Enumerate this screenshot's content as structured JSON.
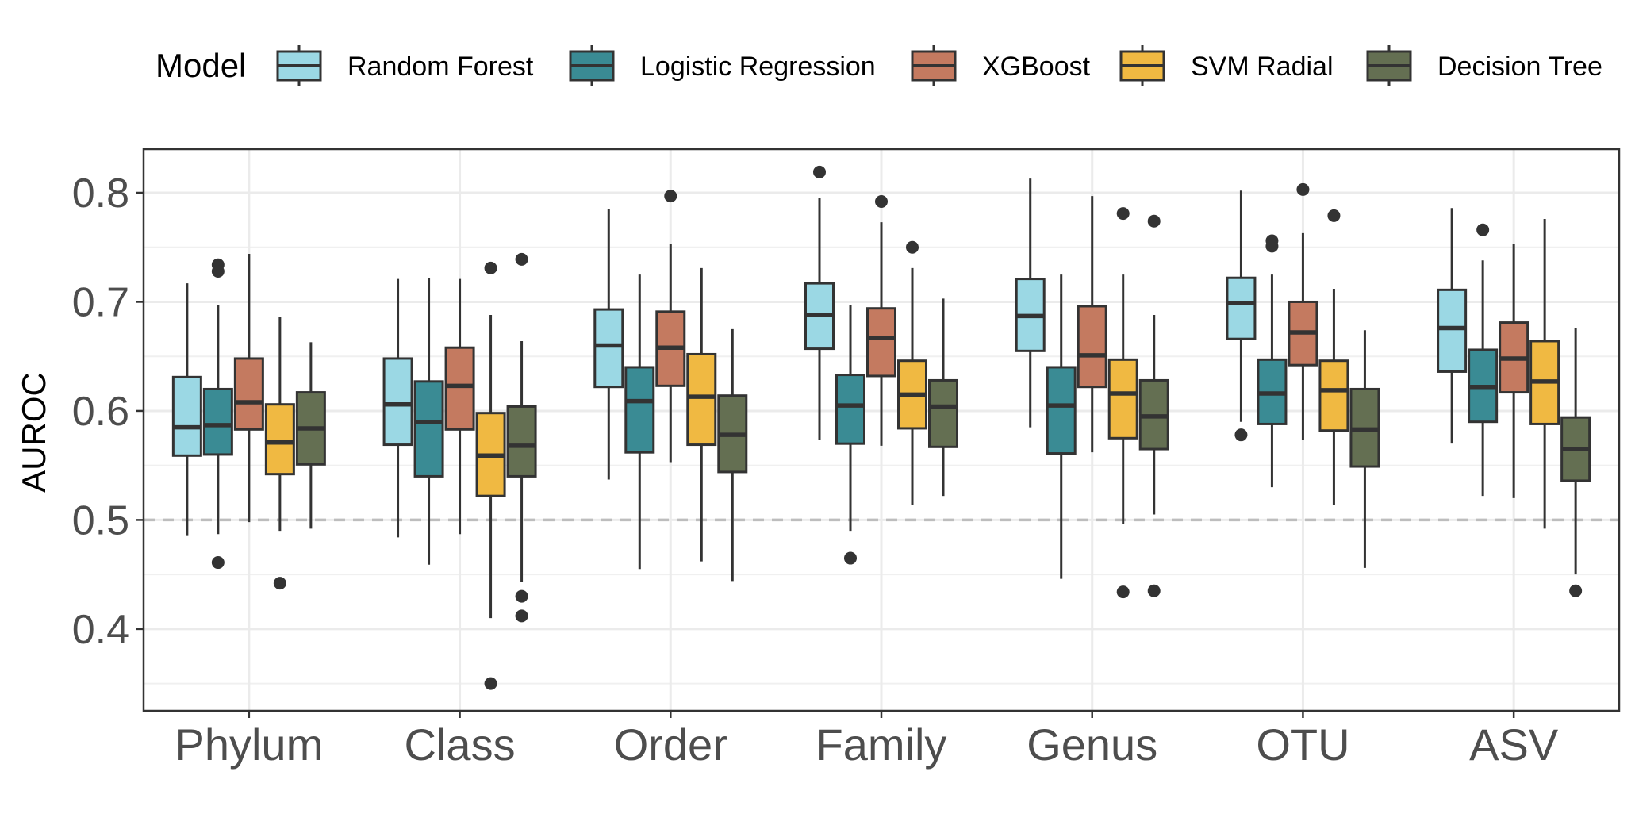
{
  "chart_data": {
    "type": "boxplot",
    "title": "",
    "xlabel": "",
    "ylabel": "AUROC",
    "ylim": [
      0.325,
      0.84
    ],
    "yticks": [
      0.4,
      0.5,
      0.6,
      0.7,
      0.8
    ],
    "ytick_labels": [
      "0.4",
      "0.5",
      "0.6",
      "0.7",
      "0.8"
    ],
    "reference_line": {
      "y": 0.5,
      "style": "dashed",
      "color": "#bdbdbd"
    },
    "grid": true,
    "legend": {
      "title": "Model",
      "position": "top"
    },
    "categories": [
      "Phylum",
      "Class",
      "Order",
      "Family",
      "Genus",
      "OTU",
      "ASV"
    ],
    "series": [
      {
        "name": "Random Forest",
        "color": "#9bd8e4",
        "boxes": [
          {
            "whislo": 0.486,
            "q1": 0.559,
            "med": 0.585,
            "q3": 0.631,
            "whishi": 0.717,
            "fliers": []
          },
          {
            "whislo": 0.484,
            "q1": 0.569,
            "med": 0.606,
            "q3": 0.648,
            "whishi": 0.721,
            "fliers": []
          },
          {
            "whislo": 0.537,
            "q1": 0.622,
            "med": 0.66,
            "q3": 0.693,
            "whishi": 0.785,
            "fliers": []
          },
          {
            "whislo": 0.573,
            "q1": 0.657,
            "med": 0.688,
            "q3": 0.717,
            "whishi": 0.795,
            "fliers": [
              0.819
            ]
          },
          {
            "whislo": 0.585,
            "q1": 0.655,
            "med": 0.687,
            "q3": 0.721,
            "whishi": 0.813,
            "fliers": []
          },
          {
            "whislo": 0.59,
            "q1": 0.666,
            "med": 0.699,
            "q3": 0.722,
            "whishi": 0.802,
            "fliers": [
              0.578
            ]
          },
          {
            "whislo": 0.57,
            "q1": 0.636,
            "med": 0.676,
            "q3": 0.711,
            "whishi": 0.786,
            "fliers": []
          }
        ]
      },
      {
        "name": "Logistic Regression",
        "color": "#3a8b94",
        "boxes": [
          {
            "whislo": 0.487,
            "q1": 0.56,
            "med": 0.587,
            "q3": 0.62,
            "whishi": 0.697,
            "fliers": [
              0.734,
              0.728,
              0.461
            ]
          },
          {
            "whislo": 0.459,
            "q1": 0.54,
            "med": 0.59,
            "q3": 0.627,
            "whishi": 0.722,
            "fliers": []
          },
          {
            "whislo": 0.455,
            "q1": 0.562,
            "med": 0.609,
            "q3": 0.64,
            "whishi": 0.725,
            "fliers": []
          },
          {
            "whislo": 0.49,
            "q1": 0.57,
            "med": 0.605,
            "q3": 0.633,
            "whishi": 0.697,
            "fliers": [
              0.465
            ]
          },
          {
            "whislo": 0.446,
            "q1": 0.561,
            "med": 0.605,
            "q3": 0.64,
            "whishi": 0.725,
            "fliers": []
          },
          {
            "whislo": 0.53,
            "q1": 0.588,
            "med": 0.616,
            "q3": 0.647,
            "whishi": 0.725,
            "fliers": [
              0.756,
              0.751
            ]
          },
          {
            "whislo": 0.522,
            "q1": 0.59,
            "med": 0.622,
            "q3": 0.656,
            "whishi": 0.738,
            "fliers": [
              0.766
            ]
          }
        ]
      },
      {
        "name": "XGBoost",
        "color": "#c47a60",
        "boxes": [
          {
            "whislo": 0.498,
            "q1": 0.583,
            "med": 0.608,
            "q3": 0.648,
            "whishi": 0.744,
            "fliers": []
          },
          {
            "whislo": 0.487,
            "q1": 0.583,
            "med": 0.623,
            "q3": 0.658,
            "whishi": 0.721,
            "fliers": []
          },
          {
            "whislo": 0.553,
            "q1": 0.623,
            "med": 0.658,
            "q3": 0.691,
            "whishi": 0.753,
            "fliers": [
              0.797
            ]
          },
          {
            "whislo": 0.568,
            "q1": 0.632,
            "med": 0.667,
            "q3": 0.694,
            "whishi": 0.773,
            "fliers": [
              0.792
            ]
          },
          {
            "whislo": 0.562,
            "q1": 0.622,
            "med": 0.651,
            "q3": 0.696,
            "whishi": 0.797,
            "fliers": []
          },
          {
            "whislo": 0.573,
            "q1": 0.642,
            "med": 0.672,
            "q3": 0.7,
            "whishi": 0.763,
            "fliers": [
              0.803
            ]
          },
          {
            "whislo": 0.52,
            "q1": 0.617,
            "med": 0.648,
            "q3": 0.681,
            "whishi": 0.753,
            "fliers": []
          }
        ]
      },
      {
        "name": "SVM Radial",
        "color": "#f0b942",
        "boxes": [
          {
            "whislo": 0.49,
            "q1": 0.542,
            "med": 0.571,
            "q3": 0.606,
            "whishi": 0.686,
            "fliers": [
              0.442
            ]
          },
          {
            "whislo": 0.41,
            "q1": 0.522,
            "med": 0.559,
            "q3": 0.598,
            "whishi": 0.688,
            "fliers": [
              0.731,
              0.35
            ]
          },
          {
            "whislo": 0.462,
            "q1": 0.569,
            "med": 0.613,
            "q3": 0.652,
            "whishi": 0.731,
            "fliers": []
          },
          {
            "whislo": 0.514,
            "q1": 0.584,
            "med": 0.615,
            "q3": 0.646,
            "whishi": 0.731,
            "fliers": [
              0.75
            ]
          },
          {
            "whislo": 0.496,
            "q1": 0.575,
            "med": 0.616,
            "q3": 0.647,
            "whishi": 0.725,
            "fliers": [
              0.781,
              0.434
            ]
          },
          {
            "whislo": 0.514,
            "q1": 0.582,
            "med": 0.619,
            "q3": 0.646,
            "whishi": 0.712,
            "fliers": [
              0.779
            ]
          },
          {
            "whislo": 0.492,
            "q1": 0.588,
            "med": 0.627,
            "q3": 0.664,
            "whishi": 0.776,
            "fliers": []
          }
        ]
      },
      {
        "name": "Decision Tree",
        "color": "#646f52",
        "boxes": [
          {
            "whislo": 0.492,
            "q1": 0.551,
            "med": 0.584,
            "q3": 0.617,
            "whishi": 0.663,
            "fliers": []
          },
          {
            "whislo": 0.443,
            "q1": 0.54,
            "med": 0.568,
            "q3": 0.604,
            "whishi": 0.664,
            "fliers": [
              0.739,
              0.43,
              0.412
            ]
          },
          {
            "whislo": 0.444,
            "q1": 0.544,
            "med": 0.578,
            "q3": 0.614,
            "whishi": 0.675,
            "fliers": []
          },
          {
            "whislo": 0.522,
            "q1": 0.567,
            "med": 0.604,
            "q3": 0.628,
            "whishi": 0.703,
            "fliers": []
          },
          {
            "whislo": 0.505,
            "q1": 0.565,
            "med": 0.595,
            "q3": 0.628,
            "whishi": 0.688,
            "fliers": [
              0.774,
              0.435
            ]
          },
          {
            "whislo": 0.456,
            "q1": 0.549,
            "med": 0.583,
            "q3": 0.62,
            "whishi": 0.674,
            "fliers": []
          },
          {
            "whislo": 0.45,
            "q1": 0.536,
            "med": 0.565,
            "q3": 0.594,
            "whishi": 0.676,
            "fliers": [
              0.435
            ]
          }
        ]
      }
    ]
  }
}
